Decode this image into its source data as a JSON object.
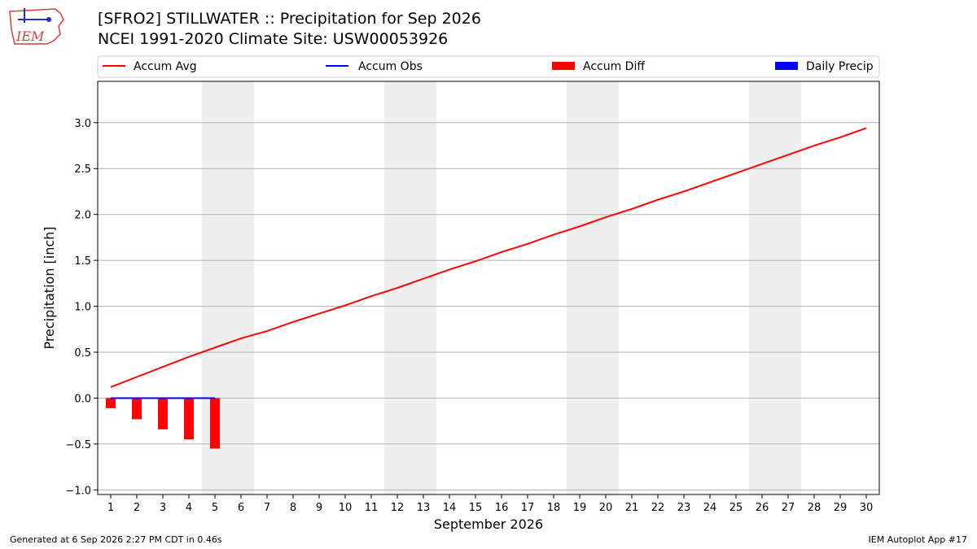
{
  "header": {
    "title_line1": "[SFRO2] STILLWATER :: Precipitation for Sep 2026",
    "title_line2": "NCEI 1991-2020 Climate Site: USW00053926",
    "logo_text": "IEM"
  },
  "footer": {
    "generated": "Generated at 6 Sep 2026 2:27 PM CDT in 0.46s",
    "app": "IEM Autoplot App #17"
  },
  "colors": {
    "avg": "#ff0000",
    "obs": "#0000ff",
    "diff": "#ff0000",
    "daily": "#0000ff",
    "weekend": "#eeeeee",
    "grid": "#b0b0b0"
  },
  "chart_data": {
    "type": "line",
    "xlabel": "September 2026",
    "ylabel": "Precipitation [inch]",
    "xlim": [
      0.5,
      30.5
    ],
    "ylim": [
      -1.05,
      3.45
    ],
    "yticks": [
      -1.0,
      -0.5,
      0.0,
      0.5,
      1.0,
      1.5,
      2.0,
      2.5,
      3.0
    ],
    "xticks": [
      1,
      2,
      3,
      4,
      5,
      6,
      7,
      8,
      9,
      10,
      11,
      12,
      13,
      14,
      15,
      16,
      17,
      18,
      19,
      20,
      21,
      22,
      23,
      24,
      25,
      26,
      27,
      28,
      29,
      30
    ],
    "grid": true,
    "legend": "top",
    "weekend_days": [
      5,
      6,
      12,
      13,
      19,
      20,
      26,
      27
    ],
    "legend_entries": [
      {
        "name": "Accum Avg",
        "kind": "line",
        "color": "#ff0000"
      },
      {
        "name": "Accum Obs",
        "kind": "line",
        "color": "#0000ff"
      },
      {
        "name": "Accum Diff",
        "kind": "bar",
        "color": "#ff0000"
      },
      {
        "name": "Daily Precip",
        "kind": "bar",
        "color": "#0000ff"
      }
    ],
    "series": [
      {
        "name": "Accum Avg",
        "kind": "line",
        "color": "#ff0000",
        "x": [
          1,
          2,
          3,
          4,
          5,
          6,
          7,
          8,
          9,
          10,
          11,
          12,
          13,
          14,
          15,
          16,
          17,
          18,
          19,
          20,
          21,
          22,
          23,
          24,
          25,
          26,
          27,
          28,
          29,
          30
        ],
        "values": [
          0.12,
          0.23,
          0.34,
          0.45,
          0.55,
          0.65,
          0.73,
          0.83,
          0.92,
          1.01,
          1.11,
          1.2,
          1.3,
          1.4,
          1.49,
          1.59,
          1.68,
          1.78,
          1.87,
          1.97,
          2.06,
          2.16,
          2.25,
          2.35,
          2.45,
          2.55,
          2.65,
          2.75,
          2.84,
          2.94
        ]
      },
      {
        "name": "Accum Obs",
        "kind": "line",
        "color": "#0000ff",
        "x": [
          1,
          2,
          3,
          4,
          5
        ],
        "values": [
          0.0,
          0.0,
          0.0,
          0.0,
          0.0
        ]
      },
      {
        "name": "Accum Diff",
        "kind": "bar",
        "color": "#ff0000",
        "x": [
          1,
          2,
          3,
          4,
          5
        ],
        "values": [
          -0.11,
          -0.23,
          -0.34,
          -0.45,
          -0.55
        ]
      },
      {
        "name": "Daily Precip",
        "kind": "bar",
        "color": "#0000ff",
        "x": [
          1,
          2,
          3,
          4,
          5
        ],
        "values": [
          0.0,
          0.0,
          0.0,
          0.0,
          0.0
        ]
      }
    ]
  }
}
